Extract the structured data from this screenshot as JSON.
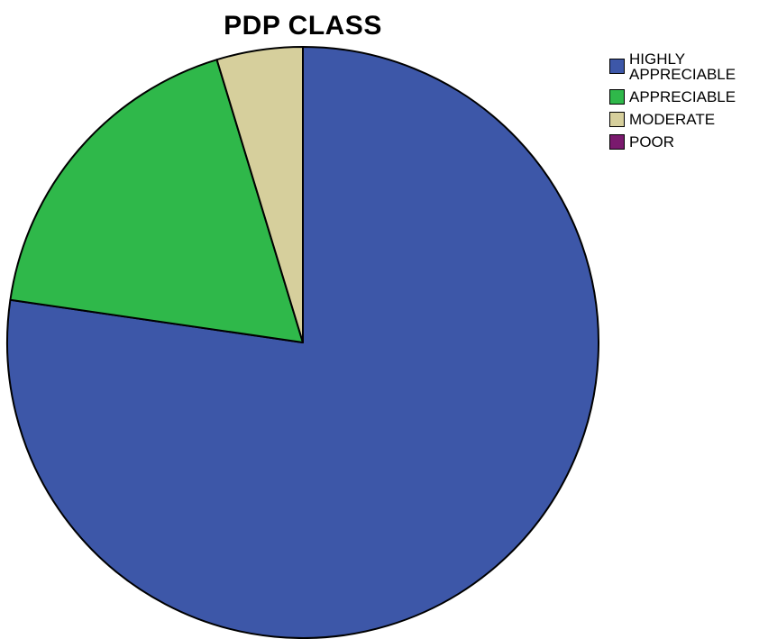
{
  "chart_data": {
    "type": "pie",
    "title": "PDP CLASS",
    "categories": [
      "HIGHLY\nAPPRECIABLE",
      "APPRECIABLE",
      "MODERATE",
      "POOR"
    ],
    "values": [
      77.3,
      18.0,
      4.7,
      0.0
    ],
    "colors": [
      "#3d57a8",
      "#2fb84a",
      "#d6cf9c",
      "#7a1a6e"
    ],
    "start_angle_deg": 0,
    "direction": "clockwise",
    "legend_position": "top-right"
  }
}
